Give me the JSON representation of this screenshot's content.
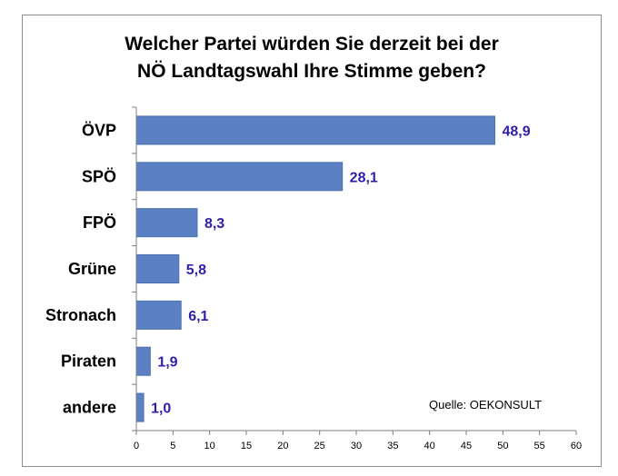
{
  "chart_data": {
    "type": "bar",
    "orientation": "horizontal",
    "title_lines": [
      "Welcher Partei würden Sie derzeit bei der",
      "NÖ Landtagswahl Ihre Stimme geben?"
    ],
    "categories": [
      "ÖVP",
      "SPÖ",
      "FPÖ",
      "Grüne",
      "Stronach",
      "Piraten",
      "andere"
    ],
    "values": [
      48.9,
      28.1,
      8.3,
      5.8,
      6.1,
      1.9,
      1.0
    ],
    "value_labels": [
      "48,9",
      "28,1",
      "8,3",
      "5,8",
      "6,1",
      "1,9",
      "1,0"
    ],
    "xlim": [
      0,
      60
    ],
    "xticks": [
      0,
      5,
      10,
      15,
      20,
      25,
      30,
      35,
      40,
      45,
      50,
      55,
      60
    ],
    "grid": false,
    "annotation": "Quelle:  OEKONSULT",
    "colors": {
      "bar": "#5b80c3",
      "bar_edge": "#4a6fae",
      "value_label": "#2e1fa8",
      "axis": "#7f7f7f"
    }
  }
}
